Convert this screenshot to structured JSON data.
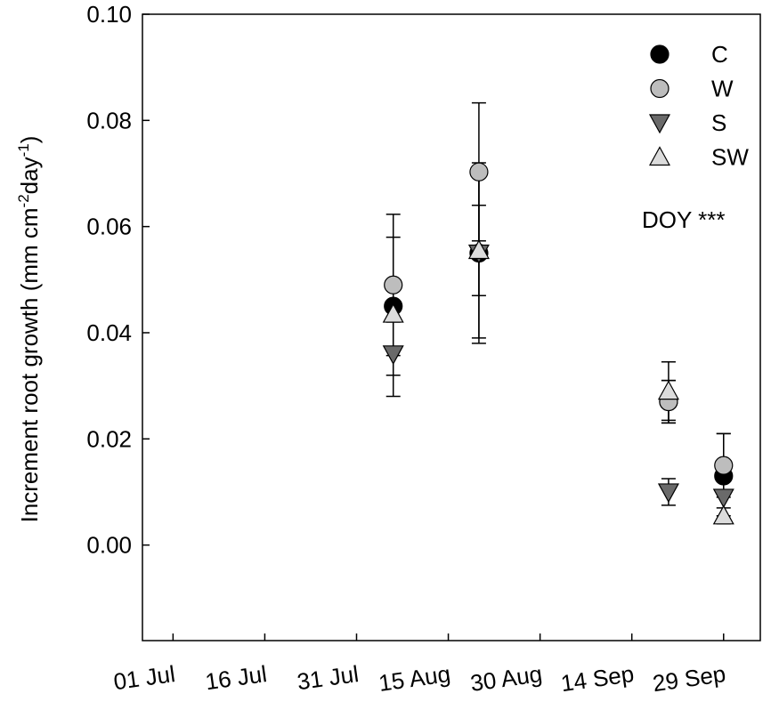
{
  "chart_data": {
    "type": "scatter",
    "title": "",
    "xlabel": "",
    "ylabel_main": "Increment root growth (mm cm",
    "ylabel_sup1": "-2",
    "ylabel_mid": "day",
    "ylabel_sup2": "-1",
    "ylabel_end": ")",
    "ylim": [
      -0.018,
      0.1
    ],
    "yticks": [
      "0.10",
      "0.08",
      "0.06",
      "0.04",
      "0.02",
      "0.00"
    ],
    "ytick_values": [
      0.1,
      0.08,
      0.06,
      0.04,
      0.02,
      0.0
    ],
    "xlim": [
      "2010-06-26",
      "2010-10-05"
    ],
    "xticks": [
      "01 Jul",
      "16 Jul",
      "31 Jul",
      "15 Aug",
      "30 Aug",
      "14 Sep",
      "29 Sep"
    ],
    "xtick_dates": [
      "2010-07-01",
      "2010-07-16",
      "2010-07-31",
      "2010-08-15",
      "2010-08-30",
      "2010-09-14",
      "2010-09-29"
    ],
    "annotation": "DOY ***",
    "legend_position": "top-right",
    "series": [
      {
        "name": "C",
        "marker": "circle",
        "color": "#000000",
        "x": [
          "2010-08-06",
          "2010-08-20",
          "2010-09-20",
          "2010-09-29"
        ],
        "y": [
          0.045,
          0.055,
          0.027,
          0.013
        ],
        "err": [
          0.013,
          0.016,
          0.004,
          0.008
        ]
      },
      {
        "name": "W",
        "marker": "circle",
        "color": "#bdbdbd",
        "x": [
          "2010-08-06",
          "2010-08-20",
          "2010-09-20",
          "2010-09-29"
        ],
        "y": [
          0.049,
          0.0703,
          0.027,
          0.015
        ],
        "err": [
          0.0133,
          0.013,
          0.004,
          0.006
        ]
      },
      {
        "name": "S",
        "marker": "triangle-down",
        "color": "#6a6a6a",
        "x": [
          "2010-08-06",
          "2010-08-20",
          "2010-09-20",
          "2010-09-29"
        ],
        "y": [
          0.036,
          0.055,
          0.01,
          0.009
        ],
        "err": [
          0.008,
          0.017,
          0.0025,
          0.0035
        ]
      },
      {
        "name": "SW",
        "marker": "triangle-up",
        "color": "#dcdcdc",
        "x": [
          "2010-08-06",
          "2010-08-20",
          "2010-09-20",
          "2010-09-29"
        ],
        "y": [
          0.0435,
          0.0555,
          0.029,
          0.0055
        ],
        "err": [
          0.0015,
          0.0085,
          0.0055,
          0.0015
        ]
      }
    ]
  }
}
